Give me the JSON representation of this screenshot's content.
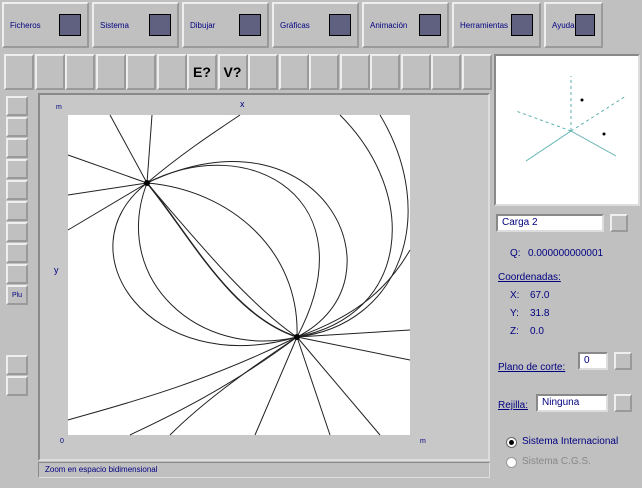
{
  "menu": [
    "Ficheros",
    "Sistema",
    "Dibujar",
    "Gráficas",
    "Animación",
    "Herramientas",
    "Ayuda"
  ],
  "toolbar": [
    "E?",
    "V?"
  ],
  "tools": [
    "Plu"
  ],
  "plot": {
    "x_axis": "x",
    "y_axis": "y",
    "corner_top": "m",
    "corner_right": "m",
    "corner_origin": "0"
  },
  "panel": {
    "charge": "Carga 2",
    "q_label": "Q:",
    "q_value": "0.000000000001",
    "coords_title": "Coordenadas:",
    "x_label": "X:",
    "x_value": "67.0",
    "y_label": "Y:",
    "y_value": "31.8",
    "z_label": "Z:",
    "z_value": "0.0",
    "plane_label": "Plano de corte:",
    "plane_value": "0",
    "grid_label": "Rejilla:",
    "grid_value": "Ninguna",
    "units": [
      "Sistema Internacional",
      "Sistema C.G.S."
    ]
  },
  "status": "Zoom en espacio bidimensional"
}
